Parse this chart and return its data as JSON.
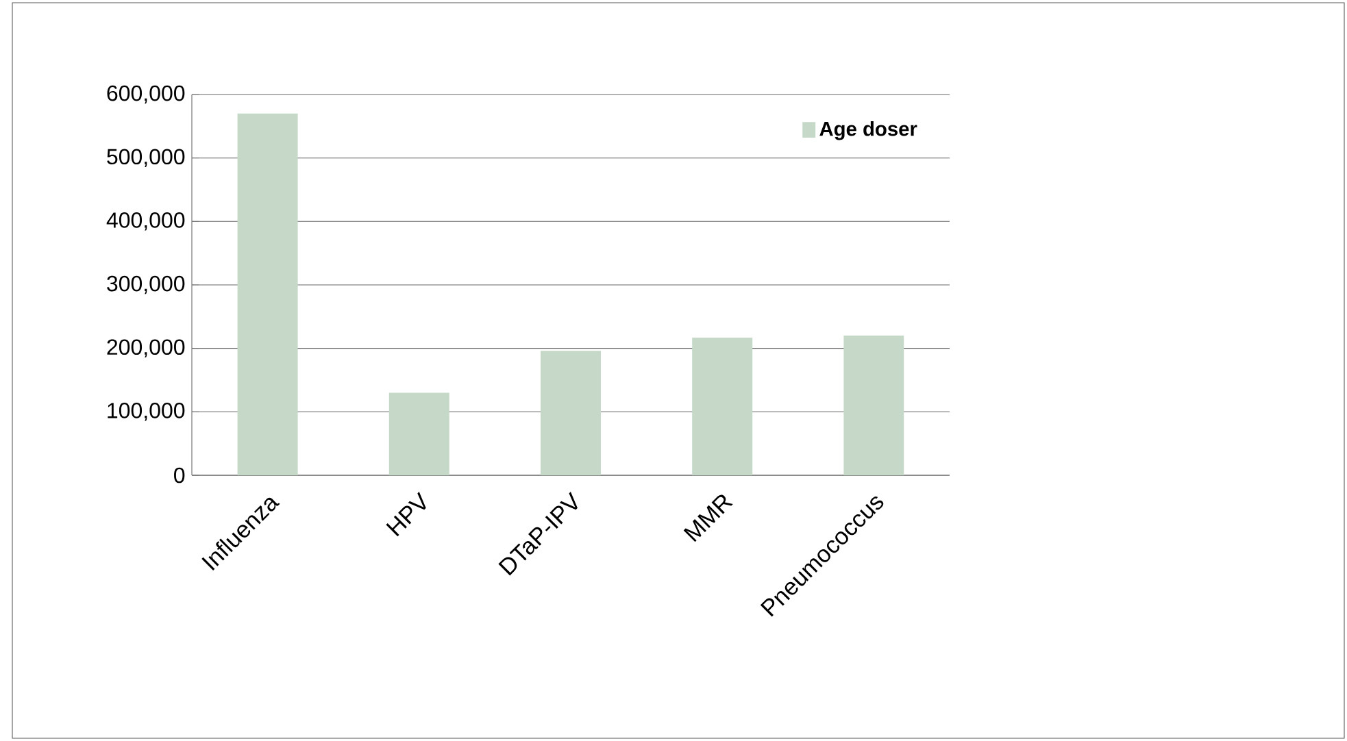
{
  "chart_data": {
    "type": "bar",
    "categories": [
      "Influenza",
      "HPV",
      "DTaP-IPV",
      "MMR",
      "Pneumococcus"
    ],
    "series": [
      {
        "name": "Age doser",
        "color": "#c6d9c9",
        "values": [
          570000,
          130000,
          196000,
          217000,
          220000
        ]
      }
    ],
    "ylim": [
      0,
      600000
    ],
    "yticks": [
      {
        "value": 0,
        "label": "0"
      },
      {
        "value": 100000,
        "label": "100,000"
      },
      {
        "value": 200000,
        "label": "200,000"
      },
      {
        "value": 300000,
        "label": "300,000"
      },
      {
        "value": 400000,
        "label": "400,000"
      },
      {
        "value": 500000,
        "label": "500,000"
      },
      {
        "value": 600000,
        "label": "600,000"
      }
    ],
    "grid": "y",
    "legend": "top right"
  }
}
